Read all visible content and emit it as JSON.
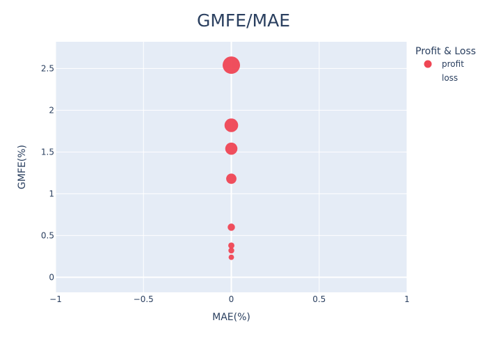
{
  "chart_data": {
    "type": "scatter",
    "title": "GMFE/MAE",
    "xlabel": "MAE(%)",
    "ylabel": "GMFE(%)",
    "xlim": [
      -1,
      1
    ],
    "ylim": [
      -0.18,
      2.82
    ],
    "x_ticks": [
      {
        "value": -1,
        "label": "−1"
      },
      {
        "value": -0.5,
        "label": "−0.5"
      },
      {
        "value": 0,
        "label": "0"
      },
      {
        "value": 0.5,
        "label": "0.5"
      },
      {
        "value": 1,
        "label": "1"
      }
    ],
    "y_ticks": [
      {
        "value": 0,
        "label": "0"
      },
      {
        "value": 0.5,
        "label": "0.5"
      },
      {
        "value": 1,
        "label": "1"
      },
      {
        "value": 1.5,
        "label": "1.5"
      },
      {
        "value": 2,
        "label": "2"
      },
      {
        "value": 2.5,
        "label": "2.5"
      }
    ],
    "grid": true,
    "legend": {
      "title": "Profit & Loss",
      "placement": "top-right",
      "entries": [
        {
          "name": "profit",
          "color": "#ef4654"
        },
        {
          "name": "loss",
          "color": ""
        }
      ]
    },
    "series": [
      {
        "name": "profit",
        "color": "#ef4654",
        "points": [
          {
            "x": 0,
            "y": 2.54
          },
          {
            "x": 0,
            "y": 1.82
          },
          {
            "x": 0,
            "y": 1.54
          },
          {
            "x": 0,
            "y": 1.18
          },
          {
            "x": 0,
            "y": 0.6
          },
          {
            "x": 0,
            "y": 0.38
          },
          {
            "x": 0,
            "y": 0.32
          },
          {
            "x": 0,
            "y": 0.24
          }
        ]
      },
      {
        "name": "loss",
        "color": "",
        "points": []
      }
    ]
  }
}
